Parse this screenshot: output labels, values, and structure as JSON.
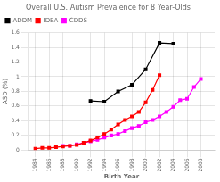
{
  "chart_data": {
    "type": "line",
    "title": "Overall U.S. Autism Prevalence for 8 Year-Olds",
    "xlabel": "Birth Year",
    "ylabel": "ASD (%)",
    "xlim": [
      1983,
      2010
    ],
    "xticks": [
      1984,
      1986,
      1988,
      1990,
      1992,
      1994,
      1996,
      1998,
      2000,
      2002,
      2004,
      2006,
      2008
    ],
    "ylim": [
      0,
      1.6
    ],
    "yticks": [
      0,
      0.2,
      0.4,
      0.6,
      0.8,
      1,
      1.2,
      1.4,
      1.6
    ],
    "grid": true,
    "legend": "upper left",
    "series": [
      {
        "name": "ADDM",
        "color": "#000000",
        "marker": "square",
        "x": [
          1992,
          1994,
          1996,
          1998,
          2000,
          2002,
          2004
        ],
        "values": [
          0.67,
          0.66,
          0.8,
          0.89,
          1.1,
          1.46,
          1.45
        ]
      },
      {
        "name": "IDEA",
        "color": "#ff0000",
        "marker": "square",
        "x": [
          1984,
          1985,
          1986,
          1987,
          1988,
          1989,
          1990,
          1991,
          1992,
          1993,
          1994,
          1995,
          1996,
          1997,
          1998,
          1999,
          2000,
          2001,
          2002
        ],
        "values": [
          0.02,
          0.03,
          0.03,
          0.04,
          0.05,
          0.06,
          0.07,
          0.1,
          0.13,
          0.17,
          0.22,
          0.28,
          0.35,
          0.41,
          0.46,
          0.52,
          0.65,
          0.82,
          1.02
        ]
      },
      {
        "name": "CDDS",
        "color": "#ff00ff",
        "marker": "square",
        "x": [
          1988,
          1989,
          1990,
          1991,
          1992,
          1993,
          1994,
          1995,
          1996,
          1997,
          1998,
          1999,
          2000,
          2001,
          2002,
          2003,
          2004,
          2005,
          2006,
          2007,
          2008
        ],
        "values": [
          0.06,
          0.06,
          0.08,
          0.1,
          0.12,
          0.14,
          0.17,
          0.2,
          0.22,
          0.26,
          0.3,
          0.33,
          0.38,
          0.41,
          0.46,
          0.52,
          0.59,
          0.68,
          0.7,
          0.86,
          0.97
        ]
      }
    ]
  }
}
